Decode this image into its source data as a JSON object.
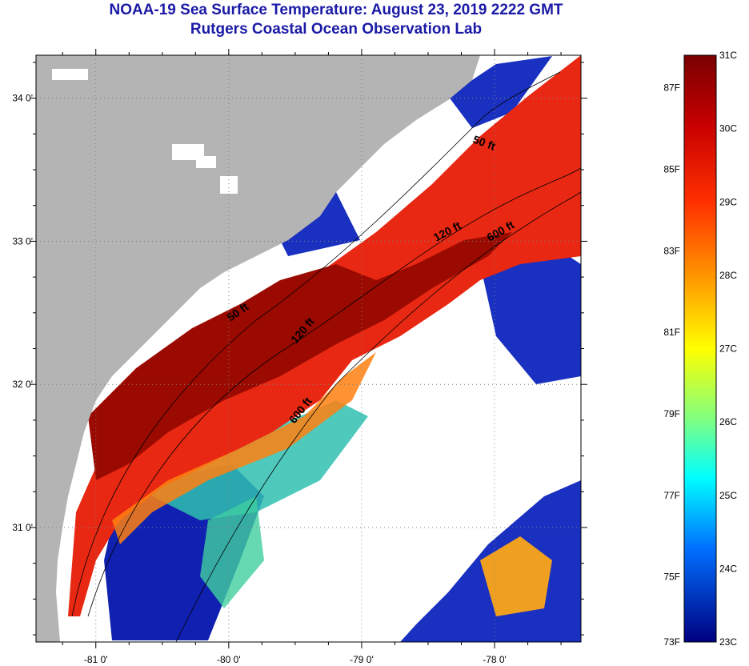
{
  "header": {
    "title": "NOAA-19 Sea Surface Temperature:  August 23, 2019 2222 GMT",
    "subtitle": "Rutgers Coastal Ocean Observation Lab"
  },
  "map": {
    "lat_ticks": [
      {
        "value": 34.0,
        "label": "34 0'"
      },
      {
        "value": 33.0,
        "label": "33 0'"
      },
      {
        "value": 32.0,
        "label": "32 0'"
      },
      {
        "value": 31.0,
        "label": "31 0'"
      }
    ],
    "lon_ticks": [
      {
        "value": -81.0,
        "label": "-81 0'"
      },
      {
        "value": -80.0,
        "label": "-80 0'"
      },
      {
        "value": -79.0,
        "label": "-79 0'"
      },
      {
        "value": -78.0,
        "label": "-78 0'"
      }
    ],
    "lon_range": [
      -81.45,
      -77.35
    ],
    "lat_range": [
      30.2,
      34.3
    ],
    "contours": [
      {
        "label": "50 ft"
      },
      {
        "label": "120 ft"
      },
      {
        "label": "600 ft"
      },
      {
        "label": "50 ft"
      },
      {
        "label": "120 ft"
      },
      {
        "label": "600 ft"
      }
    ],
    "colors": {
      "land": "#b4b4b4",
      "no_data": "#ffffff",
      "warm_core": "#8a0000",
      "warm": "#e02010",
      "mid": "#ffa000",
      "cool": "#20c0c0",
      "cold": "#1020b0"
    }
  },
  "colorbar": {
    "fahrenheit": [
      "87F",
      "85F",
      "83F",
      "81F",
      "79F",
      "77F",
      "75F",
      "73F"
    ],
    "celsius": [
      "31C",
      "30C",
      "29C",
      "28C",
      "27C",
      "26C",
      "25C",
      "24C",
      "23C"
    ]
  }
}
